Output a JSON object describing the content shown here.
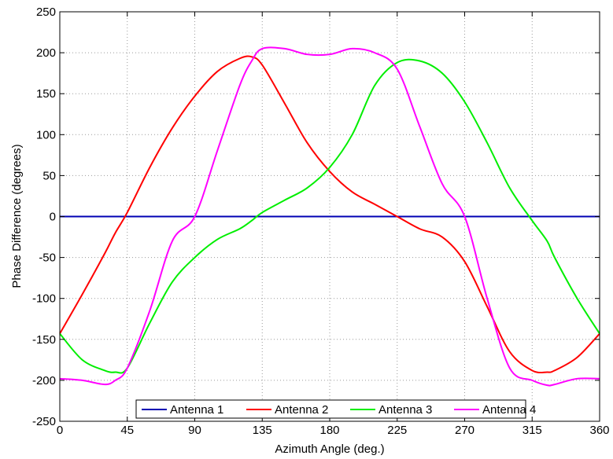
{
  "chart_data": {
    "type": "line",
    "title": "",
    "xlabel": "Azimuth Angle (deg.)",
    "ylabel": "Phase Difference (degrees)",
    "xlim": [
      0,
      360
    ],
    "ylim": [
      -250,
      250
    ],
    "xticks": [
      0,
      45,
      90,
      135,
      180,
      225,
      270,
      315,
      360
    ],
    "yticks": [
      -250,
      -200,
      -150,
      -100,
      -50,
      0,
      50,
      100,
      150,
      200,
      250
    ],
    "grid": true,
    "legend": "bottom-center",
    "x": [
      0,
      15,
      30,
      37,
      45,
      60,
      75,
      90,
      105,
      120,
      128,
      135,
      150,
      165,
      180,
      195,
      210,
      225,
      240,
      255,
      270,
      285,
      300,
      315,
      325,
      330,
      345,
      360
    ],
    "series": [
      {
        "name": "Antenna 1",
        "color": "#0000b3",
        "values": [
          0,
          0,
          0,
          0,
          0,
          0,
          0,
          0,
          0,
          0,
          0,
          0,
          0,
          0,
          0,
          0,
          0,
          0,
          0,
          0,
          0,
          0,
          0,
          0,
          0,
          0,
          0,
          0
        ]
      },
      {
        "name": "Antenna 2",
        "color": "#ff0000",
        "values": [
          -143,
          -95,
          -45,
          -20,
          5,
          60,
          108,
          147,
          177,
          193,
          195,
          185,
          138,
          90,
          55,
          30,
          15,
          0,
          -15,
          -25,
          -55,
          -110,
          -165,
          -188,
          -190,
          -188,
          -172,
          -143
        ]
      },
      {
        "name": "Antenna 3",
        "color": "#00ee00",
        "values": [
          -143,
          -175,
          -188,
          -190,
          -185,
          -130,
          -80,
          -50,
          -28,
          -15,
          -5,
          5,
          20,
          35,
          60,
          100,
          160,
          188,
          190,
          175,
          140,
          90,
          35,
          -5,
          -30,
          -50,
          -100,
          -143
        ]
      },
      {
        "name": "Antenna 4",
        "color": "#ff00ff",
        "values": [
          -198,
          -200,
          -205,
          -200,
          -185,
          -115,
          -30,
          0,
          80,
          160,
          190,
          205,
          205,
          198,
          198,
          205,
          200,
          180,
          110,
          40,
          0,
          -100,
          -185,
          -200,
          -206,
          -205,
          -198,
          -198
        ]
      }
    ]
  }
}
